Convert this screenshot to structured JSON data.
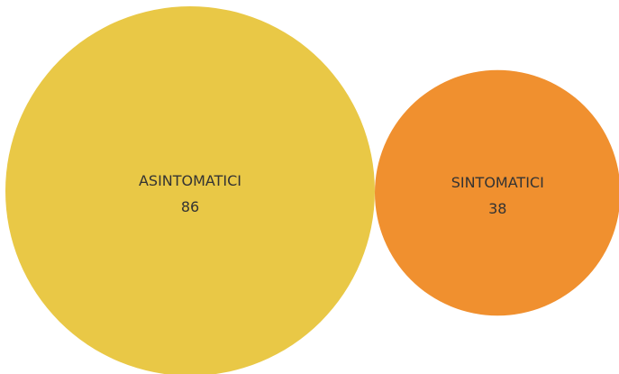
{
  "chart_data": {
    "type": "bubble",
    "title": "",
    "series": [
      {
        "label": "ASINTOMATICI",
        "value": 86,
        "color": "#E9C846"
      },
      {
        "label": "SINTOMATICI",
        "value": 38,
        "color": "#F0902F"
      }
    ],
    "legend": "none",
    "grid": false
  }
}
